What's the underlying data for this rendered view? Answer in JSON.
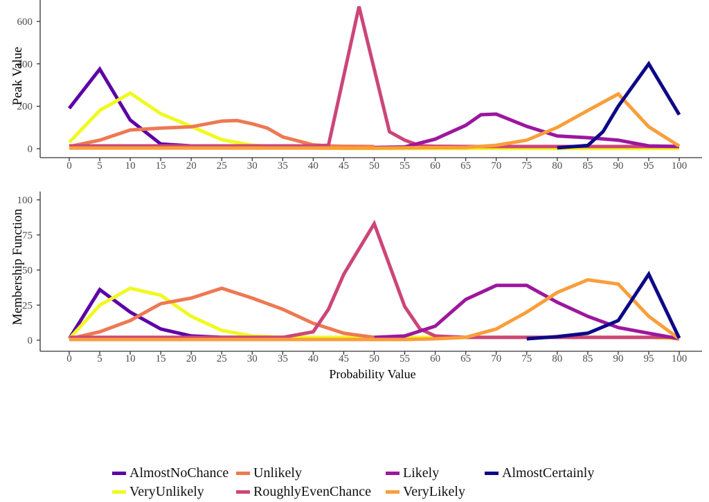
{
  "figure": {
    "background": "#ffffff",
    "axis_color": "#333333",
    "tick_label_color": "#4d4d4d",
    "title_color": "#000000",
    "line_width": 5
  },
  "chart_data": [
    {
      "type": "line",
      "panel": "top",
      "title": "",
      "xlabel": "",
      "ylabel": "Peak Value",
      "xlim": [
        0,
        100
      ],
      "ylim": [
        0,
        700
      ],
      "x_ticks": [
        0,
        5,
        10,
        15,
        20,
        25,
        30,
        35,
        40,
        45,
        50,
        55,
        60,
        65,
        70,
        75,
        80,
        85,
        90,
        95,
        100
      ],
      "y_ticks": [
        0,
        200,
        400,
        600
      ],
      "grid": false,
      "legend_position": "bottom",
      "series": [
        {
          "name": "AlmostNoChance",
          "color": "#5D01A6",
          "points": [
            [
              0,
              190
            ],
            [
              5,
              375
            ],
            [
              10,
              135
            ],
            [
              15,
              22
            ],
            [
              20,
              13
            ],
            [
              25,
              13
            ],
            [
              30,
              8
            ]
          ]
        },
        {
          "name": "VeryUnlikely",
          "color": "#F0F921",
          "points": [
            [
              0,
              30
            ],
            [
              5,
              180
            ],
            [
              10,
              262
            ],
            [
              15,
              165
            ],
            [
              20,
              105
            ],
            [
              25,
              42
            ],
            [
              30,
              16
            ],
            [
              35,
              8
            ],
            [
              40,
              3
            ],
            [
              45,
              1
            ],
            [
              50,
              1
            ],
            [
              55,
              1
            ],
            [
              60,
              1
            ],
            [
              65,
              1
            ],
            [
              70,
              1
            ],
            [
              75,
              1
            ],
            [
              80,
              1
            ],
            [
              85,
              1
            ],
            [
              90,
              1
            ],
            [
              95,
              1
            ],
            [
              100,
              1
            ]
          ]
        },
        {
          "name": "Unlikely",
          "color": "#ED7953",
          "points": [
            [
              0,
              10
            ],
            [
              5,
              40
            ],
            [
              10,
              88
            ],
            [
              15,
              97
            ],
            [
              20,
              103
            ],
            [
              25,
              130
            ],
            [
              27.5,
              133
            ],
            [
              30,
              117
            ],
            [
              32.5,
              97
            ],
            [
              35,
              55
            ],
            [
              40,
              18
            ],
            [
              42.5,
              13
            ],
            [
              45,
              11
            ],
            [
              50,
              10
            ]
          ]
        },
        {
          "name": "RoughlyEvenChance",
          "color": "#CC4678",
          "points": [
            [
              0,
              13
            ],
            [
              5,
              13
            ],
            [
              10,
              13
            ],
            [
              15,
              13
            ],
            [
              20,
              13
            ],
            [
              25,
              13
            ],
            [
              30,
              13
            ],
            [
              35,
              13
            ],
            [
              40,
              13
            ],
            [
              42.5,
              16
            ],
            [
              47.5,
              670
            ],
            [
              52.5,
              80
            ],
            [
              55,
              40
            ],
            [
              57.5,
              14
            ],
            [
              60,
              11
            ],
            [
              65,
              10
            ],
            [
              70,
              10
            ],
            [
              75,
              10
            ],
            [
              80,
              10
            ],
            [
              85,
              10
            ],
            [
              90,
              10
            ],
            [
              95,
              10
            ],
            [
              100,
              10
            ]
          ]
        },
        {
          "name": "Likely",
          "color": "#9C179E",
          "points": [
            [
              50,
              6
            ],
            [
              55,
              8
            ],
            [
              60,
              45
            ],
            [
              65,
              110
            ],
            [
              67.5,
              160
            ],
            [
              70,
              163
            ],
            [
              75,
              105
            ],
            [
              80,
              60
            ],
            [
              85,
              52
            ],
            [
              90,
              40
            ],
            [
              95,
              13
            ],
            [
              100,
              10
            ]
          ]
        },
        {
          "name": "VeryLikely",
          "color": "#FA9E3B",
          "points": [
            [
              0,
              3
            ],
            [
              5,
              3
            ],
            [
              10,
              3
            ],
            [
              15,
              3
            ],
            [
              20,
              3
            ],
            [
              25,
              3
            ],
            [
              30,
              3
            ],
            [
              35,
              3
            ],
            [
              40,
              3
            ],
            [
              45,
              3
            ],
            [
              50,
              3
            ],
            [
              55,
              4
            ],
            [
              60,
              5
            ],
            [
              65,
              6
            ],
            [
              70,
              16
            ],
            [
              75,
              40
            ],
            [
              80,
              100
            ],
            [
              85,
              180
            ],
            [
              90,
              258
            ],
            [
              95,
              103
            ],
            [
              100,
              12
            ]
          ]
        },
        {
          "name": "AlmostCertainly",
          "color": "#0D0887",
          "points": [
            [
              80,
              4
            ],
            [
              85,
              15
            ],
            [
              87.5,
              80
            ],
            [
              90,
              200
            ],
            [
              95,
              400
            ],
            [
              100,
              160
            ]
          ]
        }
      ]
    },
    {
      "type": "line",
      "panel": "bottom",
      "title": "",
      "xlabel": "Probability Value",
      "ylabel": "Membership Function",
      "xlim": [
        0,
        100
      ],
      "ylim": [
        0,
        105
      ],
      "x_ticks": [
        0,
        5,
        10,
        15,
        20,
        25,
        30,
        35,
        40,
        45,
        50,
        55,
        60,
        65,
        70,
        75,
        80,
        85,
        90,
        95,
        100
      ],
      "y_ticks": [
        0,
        25,
        50,
        75,
        100
      ],
      "grid": false,
      "legend_position": "bottom",
      "series": [
        {
          "name": "AlmostNoChance",
          "color": "#5D01A6",
          "points": [
            [
              0,
              1
            ],
            [
              5,
              36
            ],
            [
              10,
              20
            ],
            [
              15,
              8
            ],
            [
              20,
              3
            ],
            [
              25,
              2
            ],
            [
              30,
              2
            ],
            [
              35,
              2
            ]
          ]
        },
        {
          "name": "VeryUnlikely",
          "color": "#F0F921",
          "points": [
            [
              0,
              1
            ],
            [
              5,
              25
            ],
            [
              10,
              37
            ],
            [
              15,
              32
            ],
            [
              20,
              17
            ],
            [
              25,
              7
            ],
            [
              30,
              3
            ],
            [
              35,
              2
            ],
            [
              40,
              2
            ],
            [
              45,
              2
            ],
            [
              50,
              2
            ],
            [
              55,
              2
            ],
            [
              60,
              2
            ],
            [
              65,
              2
            ],
            [
              70,
              2
            ],
            [
              75,
              2
            ],
            [
              80,
              2
            ],
            [
              85,
              2
            ],
            [
              90,
              2
            ],
            [
              95,
              2
            ],
            [
              100,
              1
            ]
          ]
        },
        {
          "name": "Unlikely",
          "color": "#ED7953",
          "points": [
            [
              0,
              1
            ],
            [
              5,
              6
            ],
            [
              10,
              14
            ],
            [
              15,
              26
            ],
            [
              20,
              30
            ],
            [
              25,
              37
            ],
            [
              30,
              30
            ],
            [
              35,
              22
            ],
            [
              40,
              12
            ],
            [
              45,
              5
            ],
            [
              50,
              2
            ],
            [
              55,
              1
            ]
          ]
        },
        {
          "name": "RoughlyEvenChance",
          "color": "#CC4678",
          "points": [
            [
              0,
              2
            ],
            [
              5,
              2
            ],
            [
              10,
              2
            ],
            [
              15,
              2
            ],
            [
              20,
              2
            ],
            [
              25,
              2
            ],
            [
              30,
              2
            ],
            [
              35,
              2
            ],
            [
              40,
              6
            ],
            [
              42.5,
              22
            ],
            [
              45,
              47
            ],
            [
              50,
              83
            ],
            [
              55,
              24
            ],
            [
              57.5,
              8
            ],
            [
              60,
              3
            ],
            [
              65,
              2
            ],
            [
              70,
              2
            ],
            [
              75,
              2
            ],
            [
              80,
              2
            ],
            [
              85,
              2
            ],
            [
              90,
              2
            ],
            [
              95,
              2
            ],
            [
              100,
              2
            ]
          ]
        },
        {
          "name": "Likely",
          "color": "#9C179E",
          "points": [
            [
              50,
              2
            ],
            [
              55,
              3
            ],
            [
              60,
              10
            ],
            [
              65,
              29
            ],
            [
              70,
              39
            ],
            [
              75,
              39
            ],
            [
              80,
              27
            ],
            [
              85,
              17
            ],
            [
              90,
              9
            ],
            [
              95,
              5
            ],
            [
              100,
              1
            ]
          ]
        },
        {
          "name": "VeryLikely",
          "color": "#FA9E3B",
          "points": [
            [
              0,
              0.5
            ],
            [
              5,
              0.5
            ],
            [
              10,
              0.5
            ],
            [
              15,
              0.5
            ],
            [
              20,
              0.5
            ],
            [
              25,
              0.5
            ],
            [
              30,
              0.5
            ],
            [
              35,
              0.5
            ],
            [
              40,
              0.5
            ],
            [
              45,
              0.5
            ],
            [
              50,
              0.5
            ],
            [
              55,
              0.5
            ],
            [
              60,
              1
            ],
            [
              65,
              2
            ],
            [
              70,
              8
            ],
            [
              75,
              20
            ],
            [
              80,
              34
            ],
            [
              85,
              43
            ],
            [
              90,
              40
            ],
            [
              95,
              17
            ],
            [
              100,
              1
            ]
          ]
        },
        {
          "name": "AlmostCertainly",
          "color": "#0D0887",
          "points": [
            [
              75,
              1
            ],
            [
              80,
              2.5
            ],
            [
              85,
              5
            ],
            [
              90,
              14
            ],
            [
              95,
              47
            ],
            [
              100,
              1.5
            ]
          ]
        }
      ]
    }
  ],
  "legend": {
    "items": [
      {
        "label": "AlmostNoChance",
        "color": "#5D01A6"
      },
      {
        "label": "Unlikely",
        "color": "#ED7953"
      },
      {
        "label": "Likely",
        "color": "#9C179E"
      },
      {
        "label": "AlmostCertainly",
        "color": "#0D0887"
      },
      {
        "label": "VeryUnlikely",
        "color": "#F0F921"
      },
      {
        "label": "RoughlyEvenChance",
        "color": "#CC4678"
      },
      {
        "label": "VeryLikely",
        "color": "#FA9E3B"
      }
    ]
  }
}
